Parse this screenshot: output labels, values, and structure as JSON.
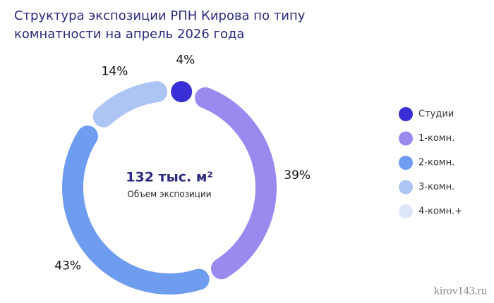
{
  "chart_data": {
    "type": "donut",
    "title": "Структура экспозиции РПН Кирова по типу комнатности на апрель 2026 года",
    "center_value": "132 тыс. м²",
    "center_label": "Объем экспозиции",
    "categories": [
      "Студии",
      "1-комн.",
      "2-комн.",
      "3-комн.",
      "4-комн.+"
    ],
    "values": [
      4,
      39,
      43,
      14,
      0
    ],
    "value_labels": [
      "4%",
      "39%",
      "43%",
      "14%",
      null
    ],
    "colors": [
      "#3a2fd6",
      "#9a8af0",
      "#6e9cef",
      "#adc5f5",
      "#dde5fa"
    ],
    "legend": "right",
    "source": "kirov143.ru"
  }
}
